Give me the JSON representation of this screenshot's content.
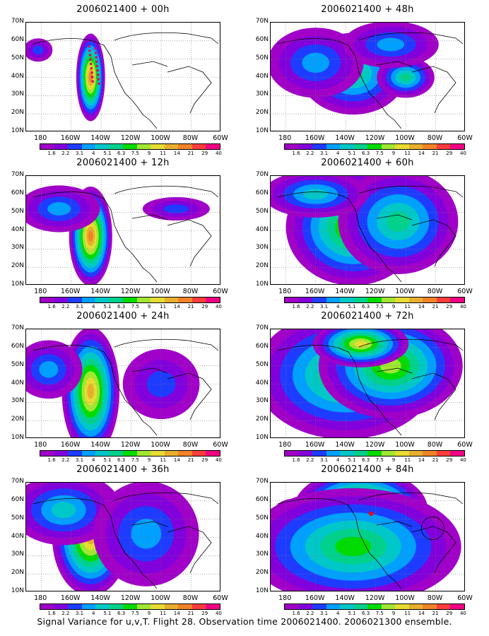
{
  "footer_text": "Signal Variance for u,v,T. Flight 28. Observation time 2006021400. 2006021300 ensemble.",
  "latitude_labels": [
    "70N",
    "60N",
    "50N",
    "40N",
    "30N",
    "20N",
    "10N"
  ],
  "longitude_labels": [
    "180",
    "160W",
    "140W",
    "120W",
    "100W",
    "80W",
    "60W"
  ],
  "colorbar": {
    "labels": [
      "1.6",
      "2.2",
      "3.1",
      "4",
      "5.1",
      "6.3",
      "7.5",
      "9",
      "11",
      "14",
      "21",
      "29",
      "40"
    ],
    "colors": [
      "#a000c8",
      "#8200dc",
      "#1e3cff",
      "#00a0ff",
      "#00c8c8",
      "#00d28c",
      "#00dc00",
      "#a0e632",
      "#e6dc32",
      "#e6af2d",
      "#f08228",
      "#fa3c3c",
      "#f00082"
    ]
  },
  "panels": [
    {
      "title": "2006021400 + 00h",
      "lead_hours": 0
    },
    {
      "title": "2006021400 + 48h",
      "lead_hours": 48
    },
    {
      "title": "2006021400 + 12h",
      "lead_hours": 12
    },
    {
      "title": "2006021400 + 60h",
      "lead_hours": 60
    },
    {
      "title": "2006021400 + 24h",
      "lead_hours": 24
    },
    {
      "title": "2006021400 + 72h",
      "lead_hours": 72
    },
    {
      "title": "2006021400 + 36h",
      "lead_hours": 36
    },
    {
      "title": "2006021400 + 84h",
      "lead_hours": 84
    }
  ],
  "map_domain": {
    "lon_min": -190,
    "lon_max": -60,
    "lat_min": 10,
    "lat_max": 70
  }
}
